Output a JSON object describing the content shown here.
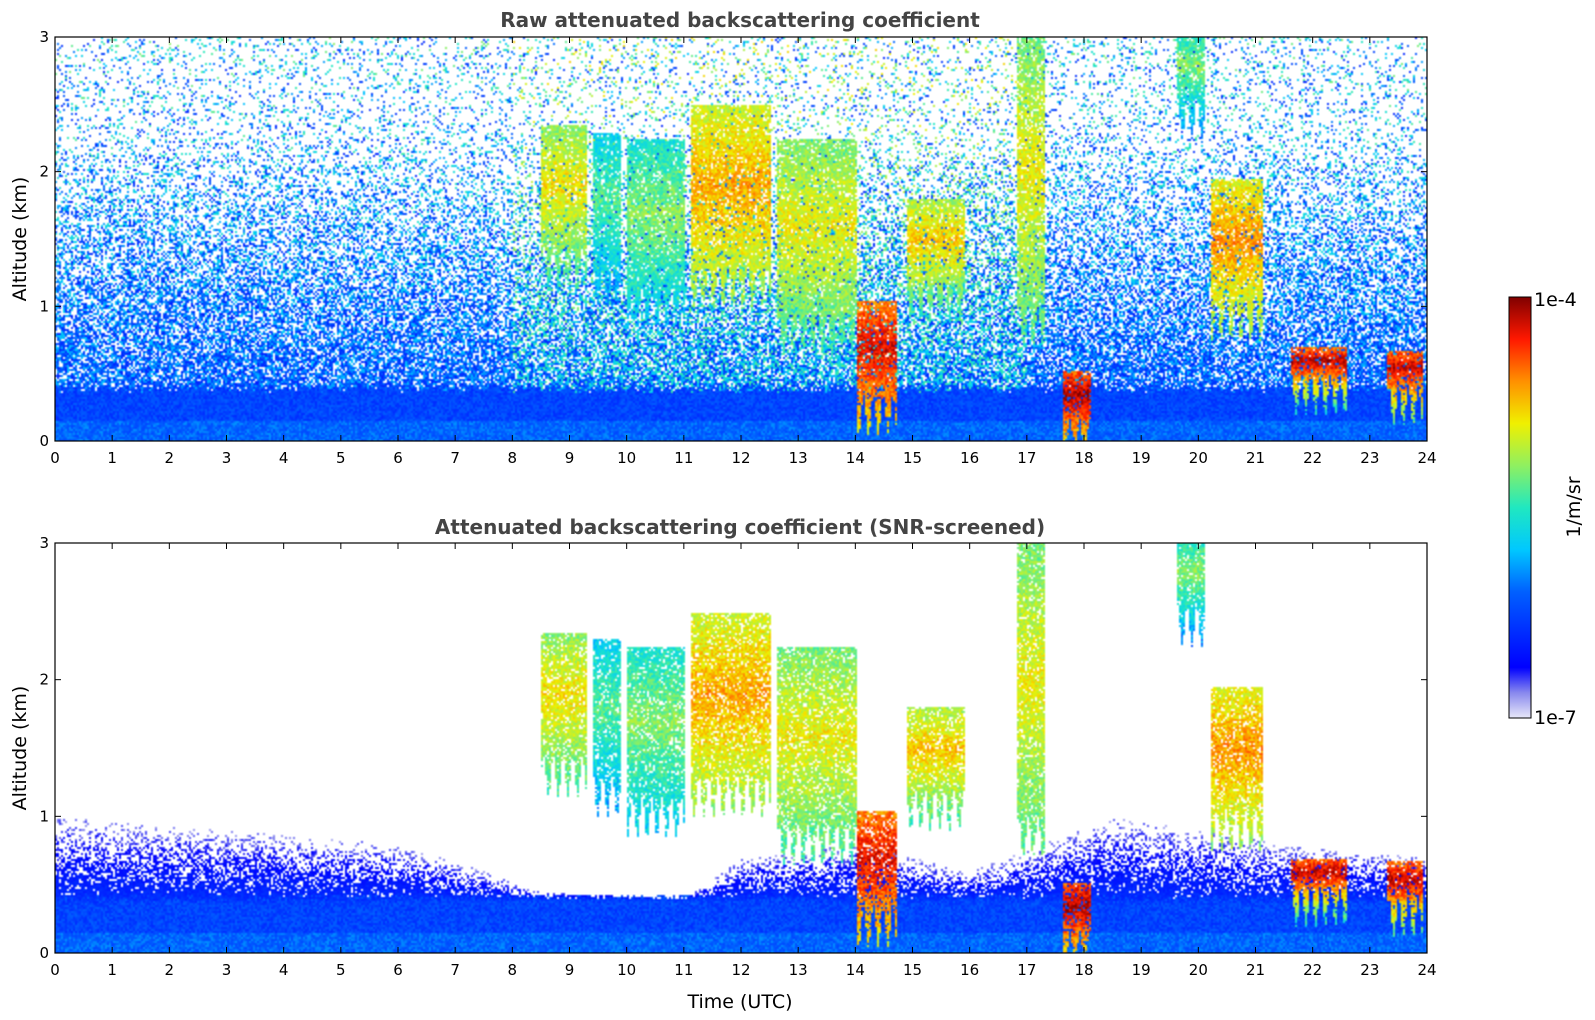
{
  "chart_data": [
    {
      "type": "heatmap",
      "title": "Raw attenuated backscattering coefficient",
      "xlabel": "",
      "ylabel": "Altitude (km)",
      "xlim": [
        0,
        24
      ],
      "ylim": [
        0,
        3
      ],
      "x_ticks": [
        "0",
        "1",
        "2",
        "3",
        "4",
        "5",
        "6",
        "7",
        "8",
        "9",
        "10",
        "11",
        "12",
        "13",
        "14",
        "15",
        "16",
        "17",
        "18",
        "19",
        "20",
        "21",
        "22",
        "23",
        "24"
      ],
      "y_ticks": [
        "0",
        "1",
        "2",
        "3"
      ],
      "features": {
        "boundary_layer_top_km": 0.4,
        "high_altitude_noise": true,
        "clouds": [
          {
            "t0": 8.5,
            "t1": 9.3,
            "alt": 1.9,
            "depth": 0.9,
            "level": 0.72
          },
          {
            "t0": 9.4,
            "t1": 9.9,
            "alt": 1.8,
            "depth": 1.0,
            "level": 0.55
          },
          {
            "t0": 10.0,
            "t1": 11.0,
            "alt": 1.7,
            "depth": 1.1,
            "level": 0.6
          },
          {
            "t0": 11.1,
            "t1": 12.5,
            "alt": 1.9,
            "depth": 1.2,
            "level": 0.78
          },
          {
            "t0": 12.6,
            "t1": 14.0,
            "alt": 1.6,
            "depth": 1.3,
            "level": 0.7
          },
          {
            "t0": 14.0,
            "t1": 14.7,
            "alt": 0.7,
            "depth": 0.7,
            "level": 0.93
          },
          {
            "t0": 14.9,
            "t1": 15.9,
            "alt": 1.5,
            "depth": 0.6,
            "level": 0.75
          },
          {
            "t0": 16.8,
            "t1": 17.3,
            "alt": 2.0,
            "depth": 2.0,
            "level": 0.7
          },
          {
            "t0": 17.6,
            "t1": 18.1,
            "alt": 0.35,
            "depth": 0.35,
            "level": 0.97
          },
          {
            "t0": 19.6,
            "t1": 20.1,
            "alt": 2.8,
            "depth": 0.5,
            "level": 0.6
          },
          {
            "t0": 20.2,
            "t1": 21.1,
            "alt": 1.5,
            "depth": 0.9,
            "level": 0.8
          },
          {
            "t0": 21.6,
            "t1": 22.6,
            "alt": 0.6,
            "depth": 0.2,
            "level": 0.95
          },
          {
            "t0": 23.3,
            "t1": 23.9,
            "alt": 0.55,
            "depth": 0.25,
            "level": 0.95
          }
        ]
      }
    },
    {
      "type": "heatmap",
      "title": "Attenuated backscattering coefficient (SNR-screened)",
      "xlabel": "Time (UTC)",
      "ylabel": "Altitude (km)",
      "xlim": [
        0,
        24
      ],
      "ylim": [
        0,
        3
      ],
      "x_ticks": [
        "0",
        "1",
        "2",
        "3",
        "4",
        "5",
        "6",
        "7",
        "8",
        "9",
        "10",
        "11",
        "12",
        "13",
        "14",
        "15",
        "16",
        "17",
        "18",
        "19",
        "20",
        "21",
        "22",
        "23",
        "24"
      ],
      "y_ticks": [
        "0",
        "1",
        "2",
        "3"
      ],
      "features": {
        "screened_top_km": [
          [
            0,
            1.0
          ],
          [
            6,
            0.8
          ],
          [
            7.5,
            0.6
          ],
          [
            8.5,
            0.45
          ],
          [
            11,
            0.4
          ],
          [
            12,
            0.7
          ],
          [
            14,
            0.8
          ],
          [
            16,
            0.6
          ],
          [
            18.5,
            1.0
          ],
          [
            21.5,
            0.8
          ],
          [
            24,
            0.7
          ]
        ],
        "high_altitude_noise": false
      }
    }
  ],
  "colorbar": {
    "label": "1/m/sr",
    "max_label": "1e-4",
    "min_label": "1e-7",
    "colormap": "jet",
    "range": [
      1e-07,
      0.0001
    ]
  },
  "colors": {
    "title": "#444444",
    "low_end": "#e8e8f8",
    "high_end": "#800000"
  }
}
